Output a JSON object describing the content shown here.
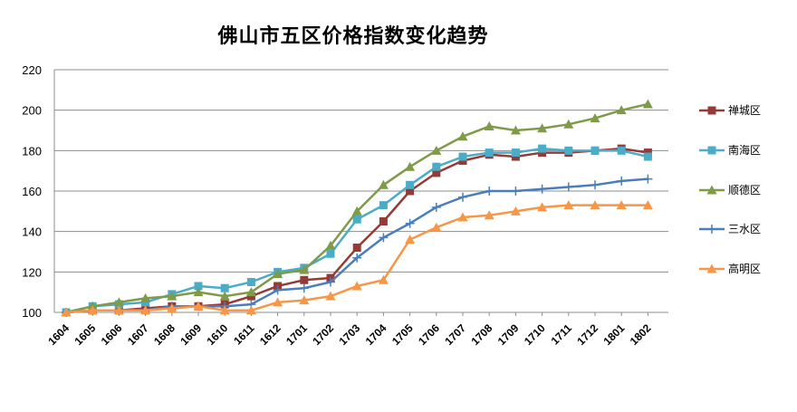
{
  "chart_data": {
    "type": "line",
    "title": "佛山市五区价格指数变化趋势",
    "xlabel": "",
    "ylabel": "",
    "ylim": [
      100,
      220
    ],
    "yticks": [
      100,
      120,
      140,
      160,
      180,
      200,
      220
    ],
    "grid": true,
    "legend": "right",
    "categories": [
      "1604",
      "1605",
      "1606",
      "1607",
      "1608",
      "1609",
      "1610",
      "1611",
      "1612",
      "1701",
      "1702",
      "1703",
      "1704",
      "1705",
      "1706",
      "1707",
      "1708",
      "1709",
      "1710",
      "1711",
      "1712",
      "1801",
      "1802"
    ],
    "series": [
      {
        "name": "禅城区",
        "color": "#963a37",
        "marker": "square",
        "values": [
          100,
          101,
          101,
          102,
          103,
          103,
          104,
          108,
          113,
          116,
          117,
          132,
          145,
          160,
          169,
          175,
          178,
          177,
          179,
          179,
          180,
          181,
          179
        ]
      },
      {
        "name": "南海区",
        "color": "#4aacc6",
        "marker": "square",
        "values": [
          100,
          103,
          104,
          105,
          109,
          113,
          112,
          115,
          120,
          122,
          129,
          146,
          153,
          163,
          172,
          177,
          179,
          179,
          181,
          180,
          180,
          180,
          177
        ]
      },
      {
        "name": "顺德区",
        "color": "#7f9a48",
        "marker": "triangle",
        "values": [
          100,
          103,
          105,
          107,
          108,
          110,
          108,
          110,
          119,
          121,
          133,
          150,
          163,
          172,
          180,
          187,
          192,
          190,
          191,
          193,
          196,
          200,
          203
        ]
      },
      {
        "name": "三水区",
        "color": "#4a7ebb",
        "marker": "plus",
        "values": [
          100,
          101,
          101,
          101,
          103,
          103,
          103,
          104,
          111,
          112,
          115,
          127,
          137,
          144,
          152,
          157,
          160,
          160,
          161,
          162,
          163,
          165,
          166
        ]
      },
      {
        "name": "高明区",
        "color": "#f79646",
        "marker": "triangle",
        "values": [
          100,
          101,
          101,
          101,
          102,
          103,
          101,
          101,
          105,
          106,
          108,
          113,
          116,
          136,
          142,
          147,
          148,
          150,
          152,
          153,
          153,
          153,
          153
        ]
      }
    ]
  }
}
